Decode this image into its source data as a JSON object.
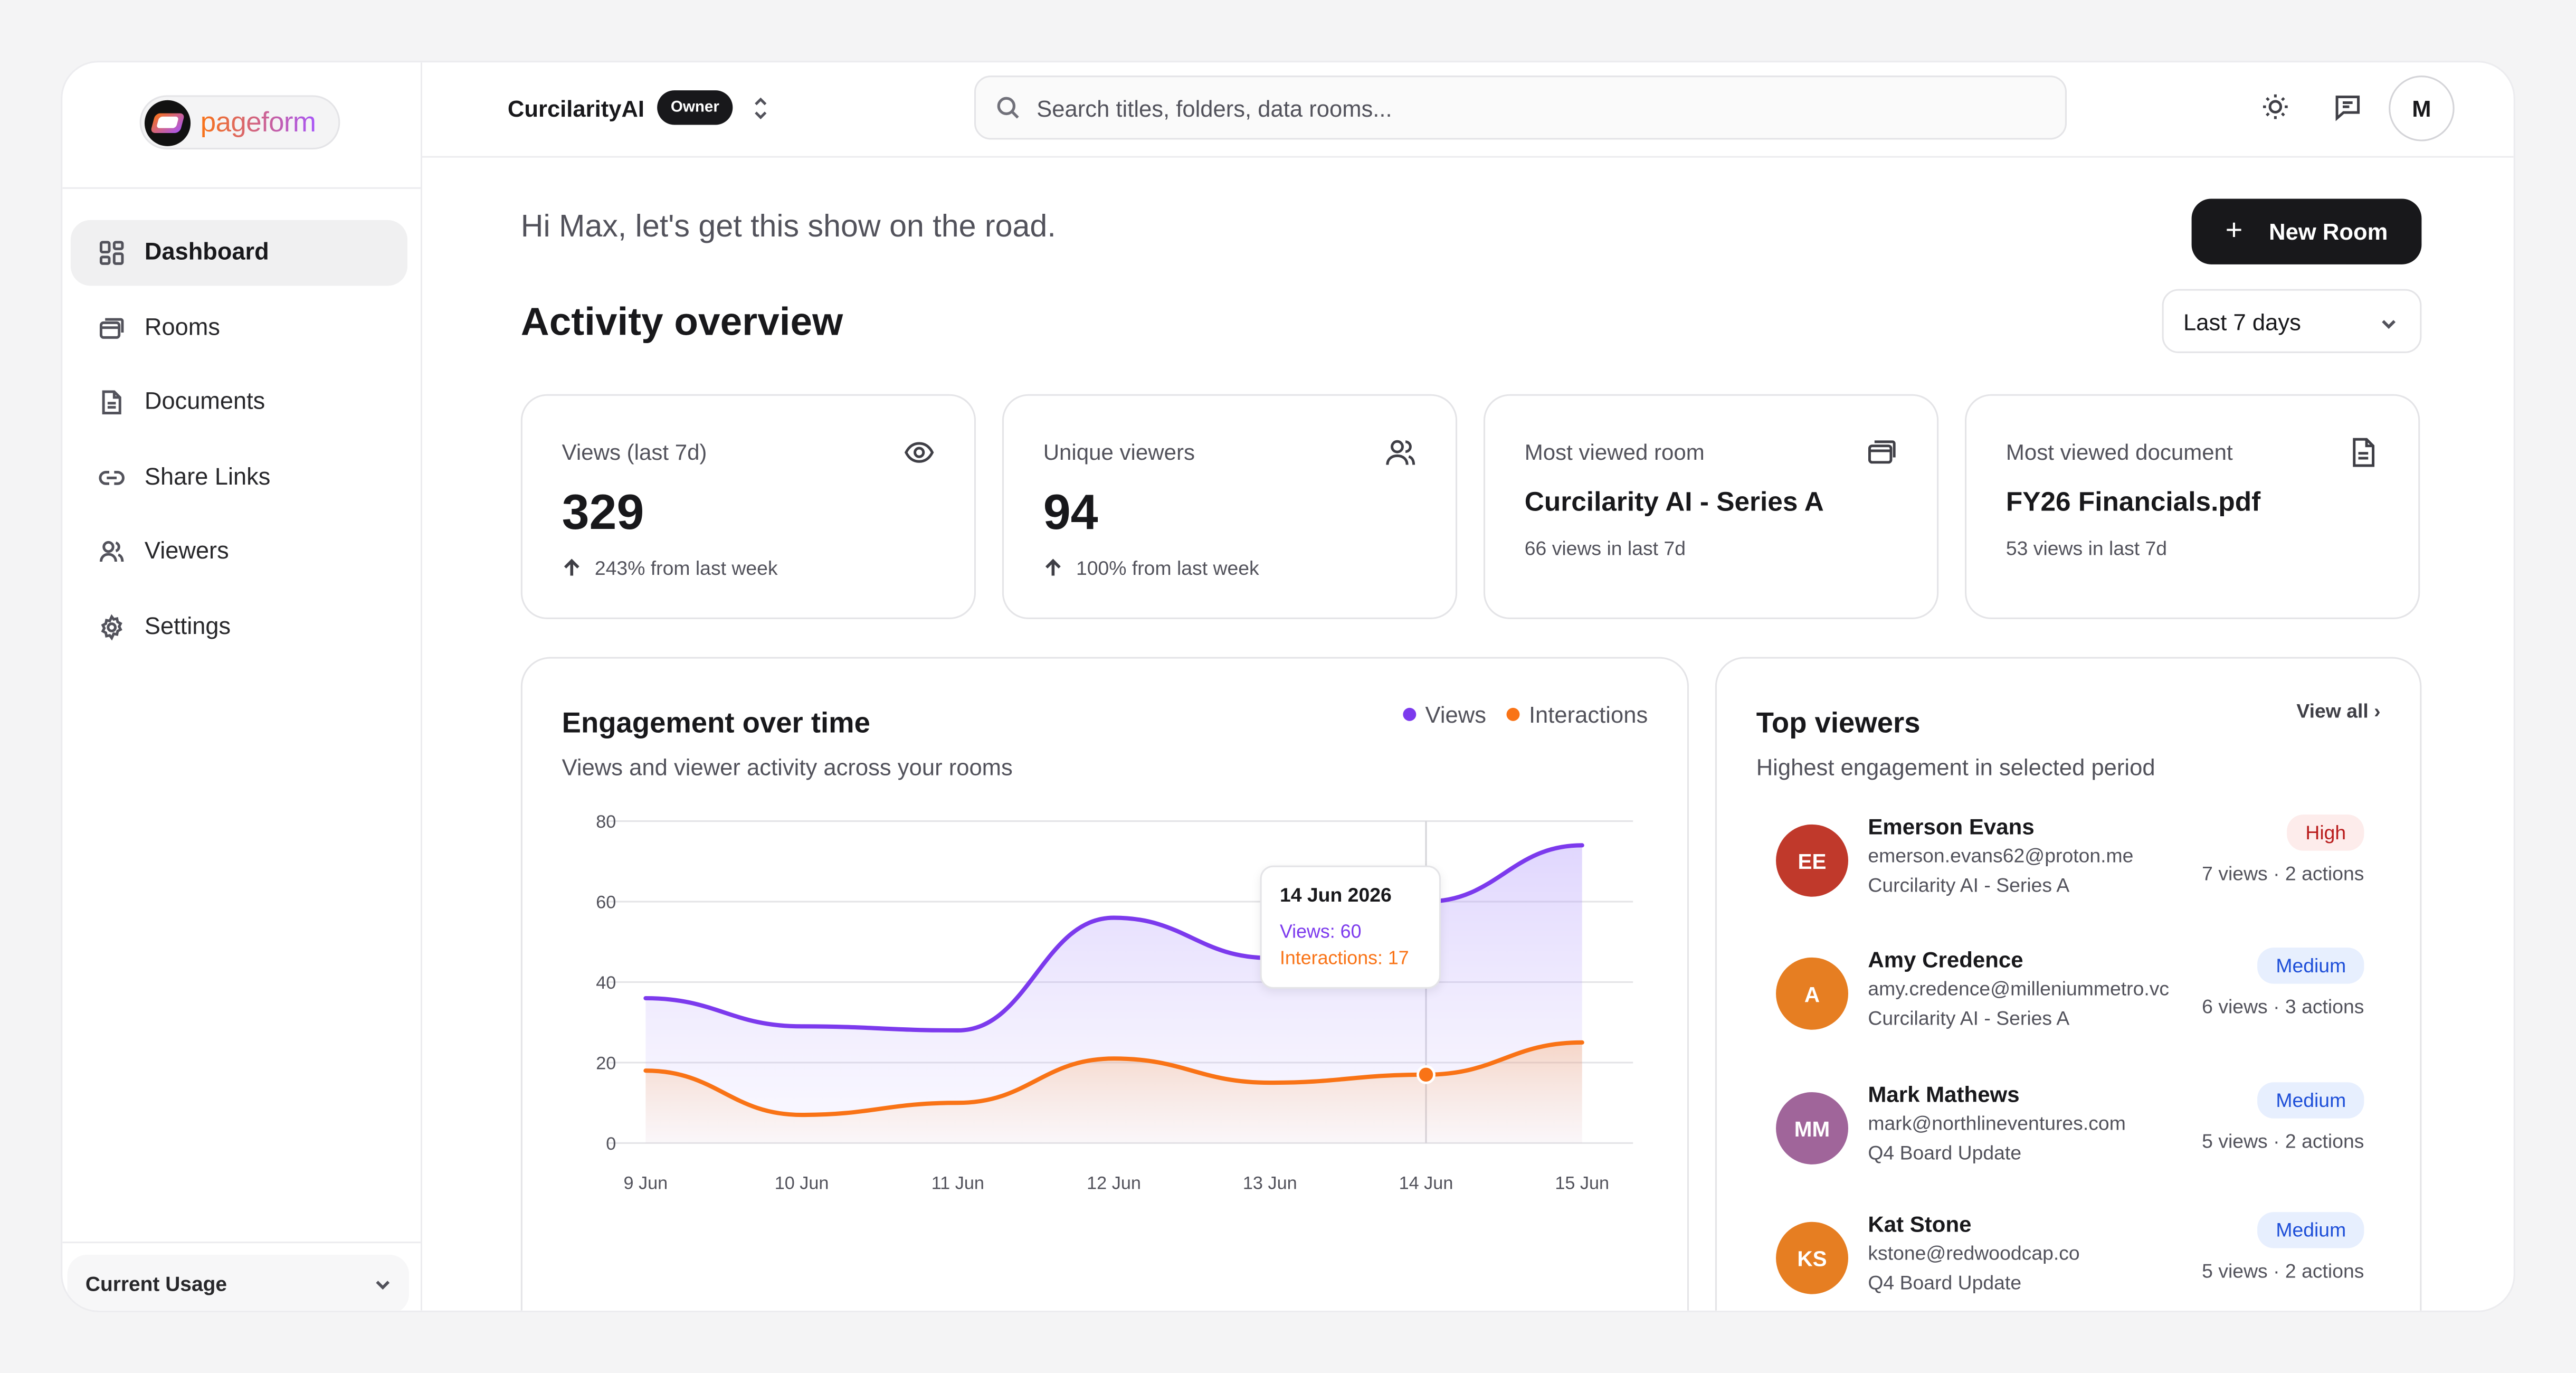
{
  "brand": {
    "name": "pageform"
  },
  "sidebar": {
    "items": [
      {
        "label": "Dashboard",
        "icon": "dashboard-icon",
        "active": true
      },
      {
        "label": "Rooms",
        "icon": "rooms-icon"
      },
      {
        "label": "Documents",
        "icon": "document-icon"
      },
      {
        "label": "Share Links",
        "icon": "link-icon"
      },
      {
        "label": "Viewers",
        "icon": "users-icon"
      },
      {
        "label": "Settings",
        "icon": "gear-icon"
      }
    ],
    "usage_label": "Current Usage"
  },
  "header": {
    "org_name": "CurcilarityAI",
    "role_badge": "Owner",
    "search_placeholder": "Search titles, folders, data rooms...",
    "avatar_initial": "M"
  },
  "main": {
    "greeting": "Hi Max, let's get this show on the road.",
    "new_room_label": "New Room",
    "section_title": "Activity overview",
    "range_value": "Last 7 days"
  },
  "stats": [
    {
      "label": "Views (last 7d)",
      "value": "329",
      "change": "243% from last week",
      "icon": "eye-icon"
    },
    {
      "label": "Unique viewers",
      "value": "94",
      "change": "100% from last week",
      "icon": "users-icon"
    },
    {
      "label": "Most viewed room",
      "name": "Curcilarity AI - Series A",
      "sub": "66 views in last 7d",
      "icon": "rooms-icon"
    },
    {
      "label": "Most viewed document",
      "name": "FY26 Financials.pdf",
      "sub": "53 views in last 7d",
      "icon": "document-icon"
    }
  ],
  "engagement": {
    "title": "Engagement over time",
    "subtitle": "Views and viewer activity across your rooms",
    "legend": {
      "views": "Views",
      "interactions": "Interactions"
    },
    "tooltip": {
      "date": "14 Jun 2026",
      "views": "Views: 60",
      "interactions": "Interactions: 17"
    }
  },
  "chart_data": {
    "type": "area",
    "categories": [
      "9 Jun",
      "10 Jun",
      "11 Jun",
      "12 Jun",
      "13 Jun",
      "14 Jun",
      "15 Jun"
    ],
    "series": [
      {
        "name": "Views",
        "values": [
          36,
          29,
          28,
          56,
          46,
          60,
          74
        ],
        "color": "#7c3aed"
      },
      {
        "name": "Interactions",
        "values": [
          18,
          7,
          10,
          21,
          15,
          17,
          25
        ],
        "color": "#f97316"
      }
    ],
    "yticks": [
      0,
      20,
      40,
      60,
      80
    ],
    "ylim": [
      0,
      80
    ],
    "highlight_index": 5,
    "grid": true,
    "legend": "top-right"
  },
  "top_viewers": {
    "title": "Top viewers",
    "subtitle": "Highest engagement in selected period",
    "view_all": "View all ›",
    "items": [
      {
        "initials": "EE",
        "name": "Emerson Evans",
        "email": "emerson.evans62@proton.me",
        "room": "Curcilarity AI - Series A",
        "badge": "High",
        "stats": "7 views · 2 actions",
        "color": "#c0392b"
      },
      {
        "initials": "A",
        "name": "Amy Credence",
        "email": "amy.credence@milleniummetro.vc",
        "room": "Curcilarity AI - Series A",
        "badge": "Medium",
        "stats": "6 views · 3 actions",
        "color": "#e67e22"
      },
      {
        "initials": "MM",
        "name": "Mark Mathews",
        "email": "mark@northlineventures.com",
        "room": "Q4 Board Update",
        "badge": "Medium",
        "stats": "5 views · 2 actions",
        "color": "#a0659a"
      },
      {
        "initials": "KS",
        "name": "Kat Stone",
        "email": "kstone@redwoodcap.co",
        "room": "Q4 Board Update",
        "badge": "Medium",
        "stats": "5 views · 2 actions",
        "color": "#e67e22"
      }
    ]
  }
}
